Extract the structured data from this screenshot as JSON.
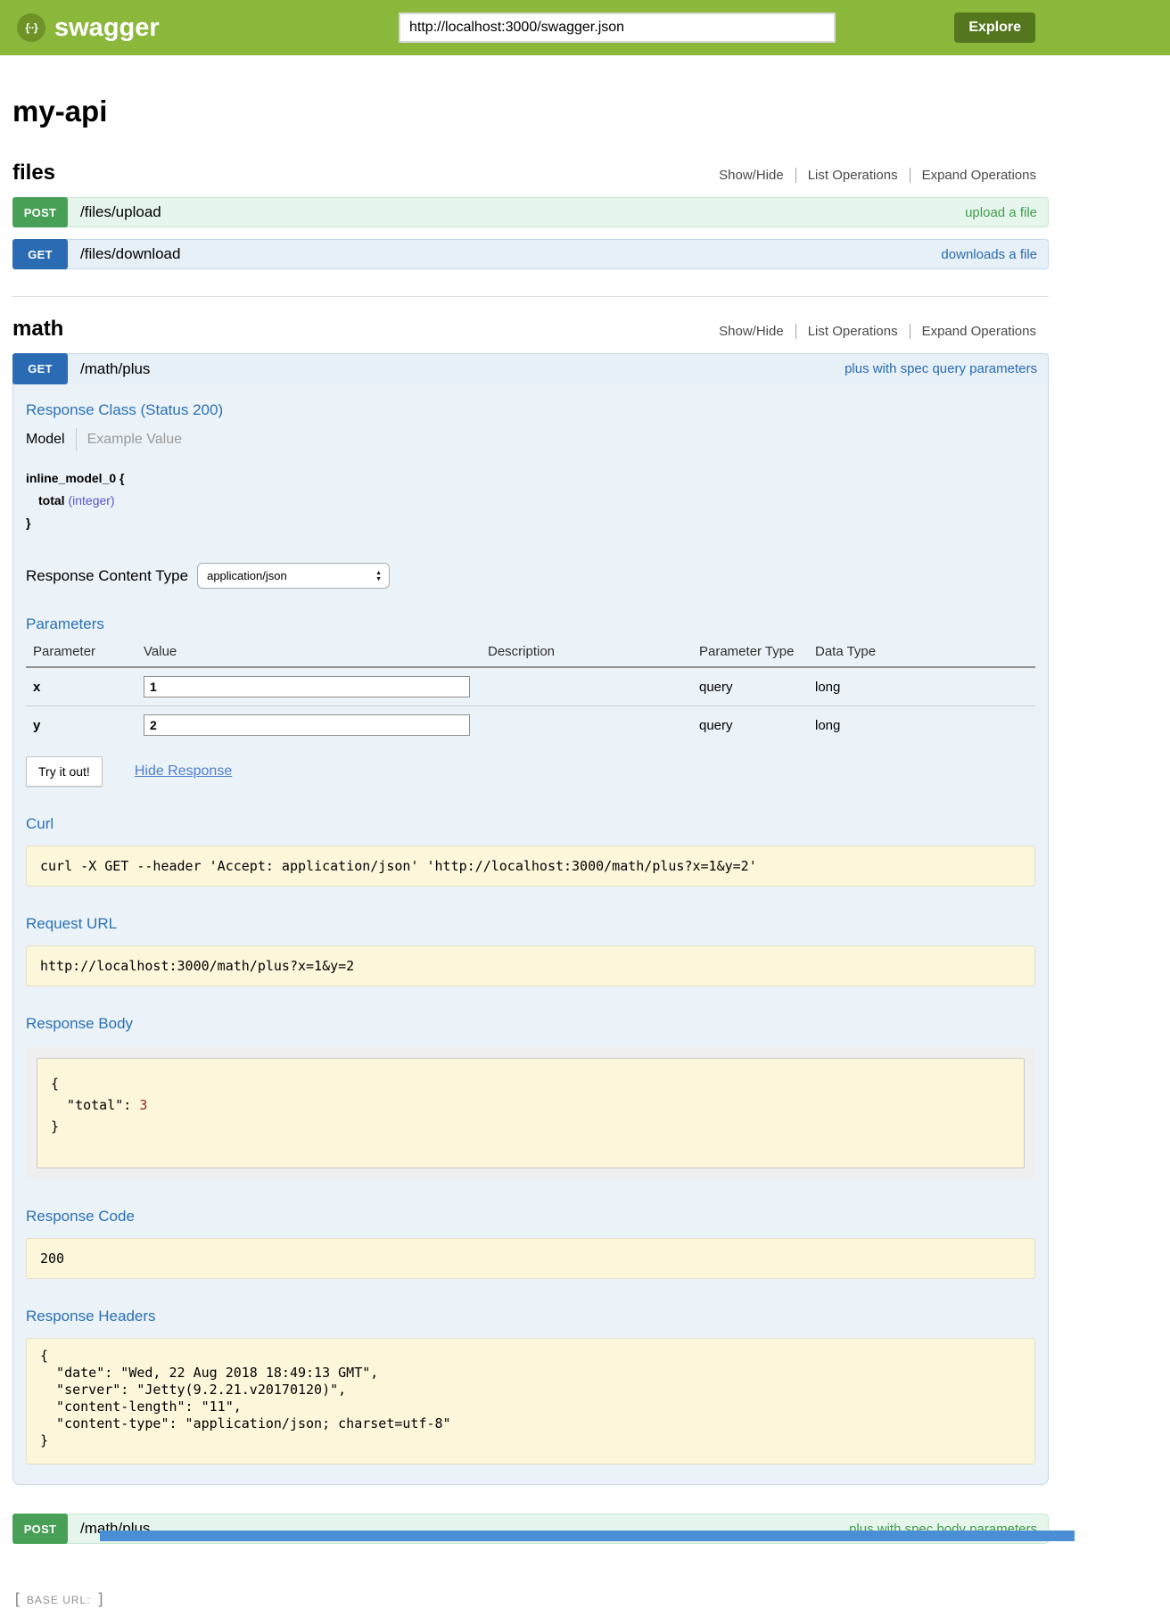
{
  "topbar": {
    "logo_glyph": "{··}",
    "brand": "swagger",
    "url_value": "http://localhost:3000/swagger.json",
    "explore_label": "Explore"
  },
  "page": {
    "title": "my-api"
  },
  "operations_links": {
    "show_hide": "Show/Hide",
    "list_operations": "List Operations",
    "expand_operations": "Expand Operations"
  },
  "files_section": {
    "title": "files",
    "endpoints": [
      {
        "method": "POST",
        "path": "/files/upload",
        "summary": "upload a file"
      },
      {
        "method": "GET",
        "path": "/files/download",
        "summary": "downloads a file"
      }
    ]
  },
  "math_section": {
    "title": "math",
    "get_op": {
      "method": "GET",
      "path": "/math/plus",
      "summary": "plus with spec query parameters",
      "response_class_heading": "Response Class (Status 200)",
      "tab_model": "Model",
      "tab_example": "Example Value",
      "model": {
        "name": "inline_model_0 {",
        "field_name": "total",
        "field_type": "(integer)",
        "close": "}"
      },
      "response_content_type": {
        "label": "Response Content Type",
        "value": "application/json"
      },
      "parameters": {
        "heading": "Parameters",
        "columns": [
          "Parameter",
          "Value",
          "Description",
          "Parameter Type",
          "Data Type"
        ],
        "rows": [
          {
            "name": "x",
            "value": "1",
            "description": "",
            "param_type": "query",
            "data_type": "long"
          },
          {
            "name": "y",
            "value": "2",
            "description": "",
            "param_type": "query",
            "data_type": "long"
          }
        ]
      },
      "try_label": "Try it out!",
      "hide_response_label": "Hide Response",
      "curl_heading": "Curl",
      "curl_command": "curl -X GET --header 'Accept: application/json' 'http://localhost:3000/math/plus?x=1&y=2'",
      "request_url_heading": "Request URL",
      "request_url": "http://localhost:3000/math/plus?x=1&y=2",
      "response_body_heading": "Response Body",
      "response_body": {
        "line_open": "{",
        "key": "  \"total\": ",
        "value": "3",
        "line_close": "}"
      },
      "response_code_heading": "Response Code",
      "response_code": "200",
      "response_headers_heading": "Response Headers",
      "response_headers_text": "{\n  \"date\": \"Wed, 22 Aug 2018 18:49:13 GMT\",\n  \"server\": \"Jetty(9.2.21.v20170120)\",\n  \"content-length\": \"11\",\n  \"content-type\": \"application/json; charset=utf-8\"\n}"
    },
    "post_op": {
      "method": "POST",
      "path": "/math/plus",
      "summary": "plus with spec body parameters"
    }
  },
  "footer": {
    "open_bracket": "[",
    "label": "BASE URL:",
    "close_bracket": "]"
  },
  "colors": {
    "header_green": "#8bb73b",
    "explore_button_green": "#54771e",
    "get_blue": "#2a6bb3",
    "post_green": "#48a056",
    "panel_blue_bg": "#ebf3f9",
    "code_block_bg": "#fcf6db",
    "json_number_red": "#96281e"
  }
}
